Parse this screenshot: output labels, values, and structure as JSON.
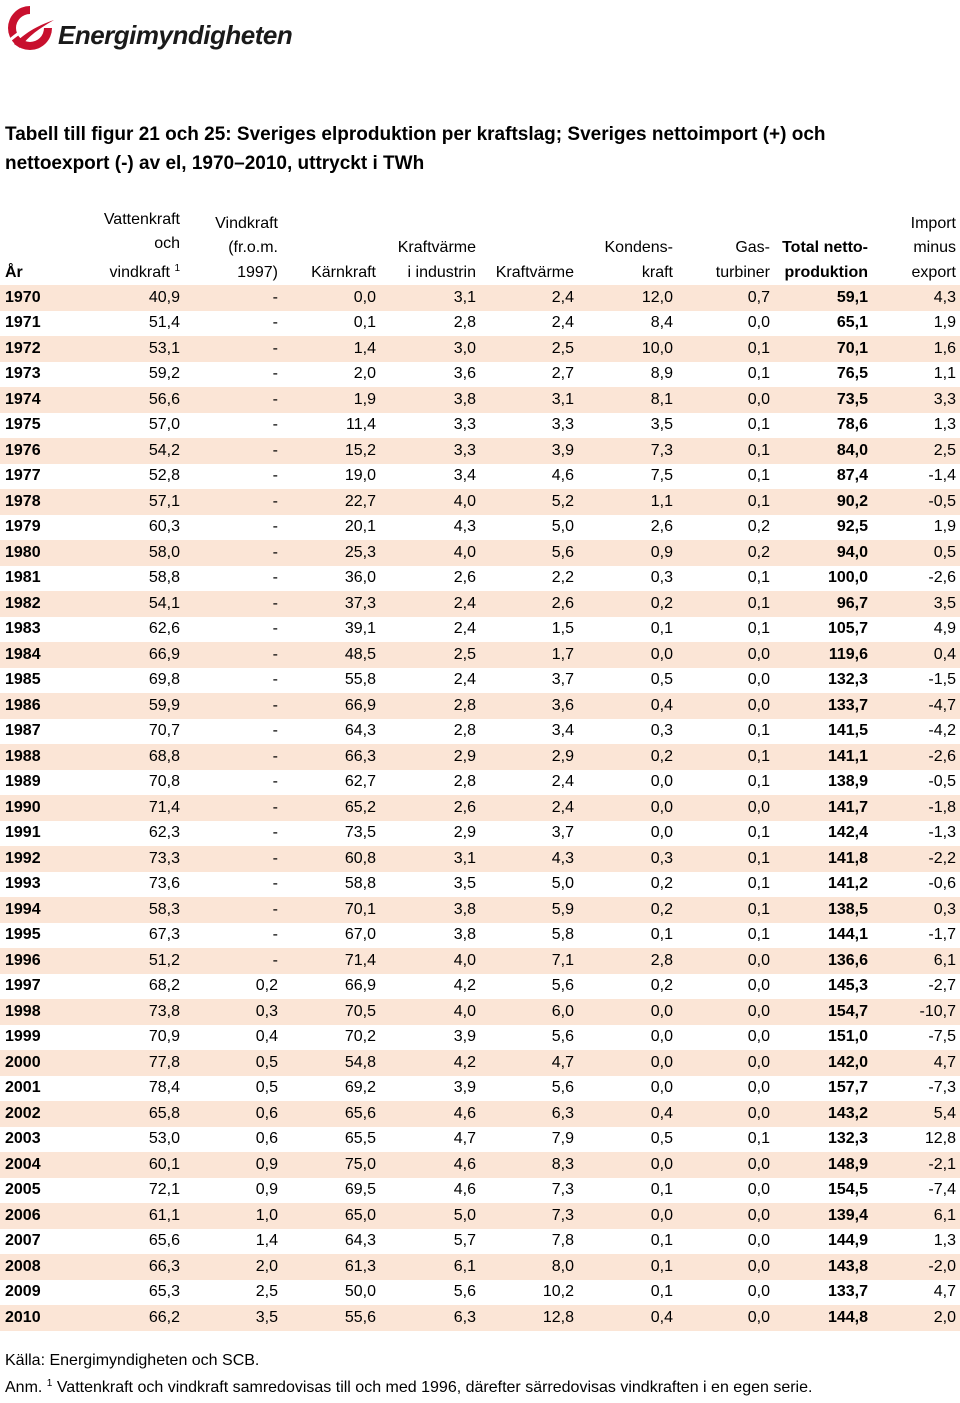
{
  "logo": {
    "name": "Energimyndigheten",
    "brand_color": "#c8102e"
  },
  "title": "Tabell till figur 21 och 25: Sveriges elproduktion per kraftslag; Sveriges nettoimport (+) och nettoexport (-) av el, 1970–2010, uttryckt i TWh",
  "columns": {
    "year": "År",
    "hydro": [
      "Vattenkraft",
      "och",
      "vindkraft"
    ],
    "hydro_sup": "1",
    "wind": [
      "Vindkraft",
      "(fr.o.m.",
      "1997)"
    ],
    "nuclear": "Kärnkraft",
    "industrial_chp": [
      "Kraftvärme",
      "i industrin"
    ],
    "chp": "Kraftvärme",
    "condensing": [
      "Kondens-",
      "kraft"
    ],
    "gas_turbines": [
      "Gas-",
      "turbiner"
    ],
    "total": [
      "Total netto-",
      "produktion"
    ],
    "import_export": [
      "Import",
      "minus",
      "export"
    ]
  },
  "rows": [
    [
      "1970",
      "40,9",
      "-",
      "0,0",
      "3,1",
      "2,4",
      "12,0",
      "0,7",
      "59,1",
      "4,3"
    ],
    [
      "1971",
      "51,4",
      "-",
      "0,1",
      "2,8",
      "2,4",
      "8,4",
      "0,0",
      "65,1",
      "1,9"
    ],
    [
      "1972",
      "53,1",
      "-",
      "1,4",
      "3,0",
      "2,5",
      "10,0",
      "0,1",
      "70,1",
      "1,6"
    ],
    [
      "1973",
      "59,2",
      "-",
      "2,0",
      "3,6",
      "2,7",
      "8,9",
      "0,1",
      "76,5",
      "1,1"
    ],
    [
      "1974",
      "56,6",
      "-",
      "1,9",
      "3,8",
      "3,1",
      "8,1",
      "0,0",
      "73,5",
      "3,3"
    ],
    [
      "1975",
      "57,0",
      "-",
      "11,4",
      "3,3",
      "3,3",
      "3,5",
      "0,1",
      "78,6",
      "1,3"
    ],
    [
      "1976",
      "54,2",
      "-",
      "15,2",
      "3,3",
      "3,9",
      "7,3",
      "0,1",
      "84,0",
      "2,5"
    ],
    [
      "1977",
      "52,8",
      "-",
      "19,0",
      "3,4",
      "4,6",
      "7,5",
      "0,1",
      "87,4",
      "-1,4"
    ],
    [
      "1978",
      "57,1",
      "-",
      "22,7",
      "4,0",
      "5,2",
      "1,1",
      "0,1",
      "90,2",
      "-0,5"
    ],
    [
      "1979",
      "60,3",
      "-",
      "20,1",
      "4,3",
      "5,0",
      "2,6",
      "0,2",
      "92,5",
      "1,9"
    ],
    [
      "1980",
      "58,0",
      "-",
      "25,3",
      "4,0",
      "5,6",
      "0,9",
      "0,2",
      "94,0",
      "0,5"
    ],
    [
      "1981",
      "58,8",
      "-",
      "36,0",
      "2,6",
      "2,2",
      "0,3",
      "0,1",
      "100,0",
      "-2,6"
    ],
    [
      "1982",
      "54,1",
      "-",
      "37,3",
      "2,4",
      "2,6",
      "0,2",
      "0,1",
      "96,7",
      "3,5"
    ],
    [
      "1983",
      "62,6",
      "-",
      "39,1",
      "2,4",
      "1,5",
      "0,1",
      "0,1",
      "105,7",
      "4,9"
    ],
    [
      "1984",
      "66,9",
      "-",
      "48,5",
      "2,5",
      "1,7",
      "0,0",
      "0,0",
      "119,6",
      "0,4"
    ],
    [
      "1985",
      "69,8",
      "-",
      "55,8",
      "2,4",
      "3,7",
      "0,5",
      "0,0",
      "132,3",
      "-1,5"
    ],
    [
      "1986",
      "59,9",
      "-",
      "66,9",
      "2,8",
      "3,6",
      "0,4",
      "0,0",
      "133,7",
      "-4,7"
    ],
    [
      "1987",
      "70,7",
      "-",
      "64,3",
      "2,8",
      "3,4",
      "0,3",
      "0,1",
      "141,5",
      "-4,2"
    ],
    [
      "1988",
      "68,8",
      "-",
      "66,3",
      "2,9",
      "2,9",
      "0,2",
      "0,1",
      "141,1",
      "-2,6"
    ],
    [
      "1989",
      "70,8",
      "-",
      "62,7",
      "2,8",
      "2,4",
      "0,0",
      "0,1",
      "138,9",
      "-0,5"
    ],
    [
      "1990",
      "71,4",
      "-",
      "65,2",
      "2,6",
      "2,4",
      "0,0",
      "0,0",
      "141,7",
      "-1,8"
    ],
    [
      "1991",
      "62,3",
      "-",
      "73,5",
      "2,9",
      "3,7",
      "0,0",
      "0,1",
      "142,4",
      "-1,3"
    ],
    [
      "1992",
      "73,3",
      "-",
      "60,8",
      "3,1",
      "4,3",
      "0,3",
      "0,1",
      "141,8",
      "-2,2"
    ],
    [
      "1993",
      "73,6",
      "-",
      "58,8",
      "3,5",
      "5,0",
      "0,2",
      "0,1",
      "141,2",
      "-0,6"
    ],
    [
      "1994",
      "58,3",
      "-",
      "70,1",
      "3,8",
      "5,9",
      "0,2",
      "0,1",
      "138,5",
      "0,3"
    ],
    [
      "1995",
      "67,3",
      "-",
      "67,0",
      "3,8",
      "5,8",
      "0,1",
      "0,1",
      "144,1",
      "-1,7"
    ],
    [
      "1996",
      "51,2",
      "-",
      "71,4",
      "4,0",
      "7,1",
      "2,8",
      "0,0",
      "136,6",
      "6,1"
    ],
    [
      "1997",
      "68,2",
      "0,2",
      "66,9",
      "4,2",
      "5,6",
      "0,2",
      "0,0",
      "145,3",
      "-2,7"
    ],
    [
      "1998",
      "73,8",
      "0,3",
      "70,5",
      "4,0",
      "6,0",
      "0,0",
      "0,0",
      "154,7",
      "-10,7"
    ],
    [
      "1999",
      "70,9",
      "0,4",
      "70,2",
      "3,9",
      "5,6",
      "0,0",
      "0,0",
      "151,0",
      "-7,5"
    ],
    [
      "2000",
      "77,8",
      "0,5",
      "54,8",
      "4,2",
      "4,7",
      "0,0",
      "0,0",
      "142,0",
      "4,7"
    ],
    [
      "2001",
      "78,4",
      "0,5",
      "69,2",
      "3,9",
      "5,6",
      "0,0",
      "0,0",
      "157,7",
      "-7,3"
    ],
    [
      "2002",
      "65,8",
      "0,6",
      "65,6",
      "4,6",
      "6,3",
      "0,4",
      "0,0",
      "143,2",
      "5,4"
    ],
    [
      "2003",
      "53,0",
      "0,6",
      "65,5",
      "4,7",
      "7,9",
      "0,5",
      "0,1",
      "132,3",
      "12,8"
    ],
    [
      "2004",
      "60,1",
      "0,9",
      "75,0",
      "4,6",
      "8,3",
      "0,0",
      "0,0",
      "148,9",
      "-2,1"
    ],
    [
      "2005",
      "72,1",
      "0,9",
      "69,5",
      "4,6",
      "7,3",
      "0,1",
      "0,0",
      "154,5",
      "-7,4"
    ],
    [
      "2006",
      "61,1",
      "1,0",
      "65,0",
      "5,0",
      "7,3",
      "0,0",
      "0,0",
      "139,4",
      "6,1"
    ],
    [
      "2007",
      "65,6",
      "1,4",
      "64,3",
      "5,7",
      "7,8",
      "0,1",
      "0,0",
      "144,9",
      "1,3"
    ],
    [
      "2008",
      "66,3",
      "2,0",
      "61,3",
      "6,1",
      "8,0",
      "0,1",
      "0,0",
      "143,8",
      "-2,0"
    ],
    [
      "2009",
      "65,3",
      "2,5",
      "50,0",
      "5,6",
      "10,2",
      "0,1",
      "0,0",
      "133,7",
      "4,7"
    ],
    [
      "2010",
      "66,2",
      "3,5",
      "55,6",
      "6,3",
      "12,8",
      "0,4",
      "0,0",
      "144,8",
      "2,0"
    ]
  ],
  "row_shading": "#fbe5d6",
  "source": "Källa: Energimyndigheten och SCB.",
  "note_prefix": "Anm.",
  "note_sup": "1",
  "note_text": "Vattenkraft och vindkraft samredovisas till och med 1996, därefter särredovisas vindkraften i en egen serie."
}
